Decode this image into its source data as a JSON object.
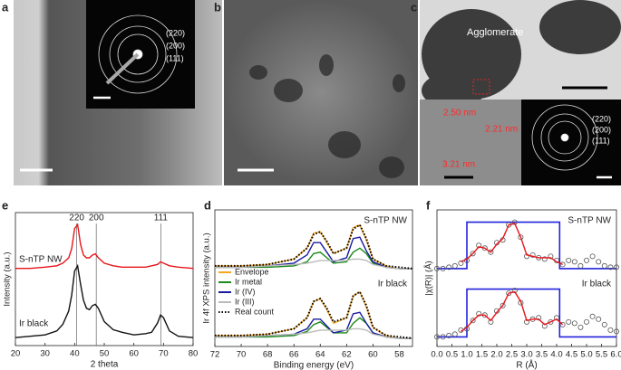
{
  "figure": {
    "panel_labels": [
      "a",
      "b",
      "c",
      "e",
      "d",
      "f"
    ],
    "panel_a": {
      "rings": [
        "(220)",
        "(200)",
        "(111)"
      ]
    },
    "panel_c": {
      "label": "Agglomerate",
      "spacings": [
        "2.50 nm",
        "2.21 nm",
        "3.21 nm"
      ],
      "rings": [
        "(220)",
        "(200)",
        "(111)"
      ]
    }
  },
  "chart_data": [
    {
      "type": "line",
      "xlabel": "2 theta",
      "ylabel": "Intensity (a.u.)",
      "x": [
        20,
        25,
        30,
        34,
        36,
        38,
        39,
        40,
        41,
        42,
        43,
        44,
        45,
        46,
        47,
        48,
        50,
        53,
        56,
        60,
        64,
        66,
        68,
        69,
        70,
        72,
        75,
        80
      ],
      "xlim": [
        20,
        80
      ],
      "xticks": [
        20,
        30,
        40,
        50,
        60,
        70,
        80
      ],
      "ylim": [
        0,
        10
      ],
      "series": [
        {
          "name": "S-nTP NW",
          "color": "#e8141a",
          "values": [
            5.8,
            5.8,
            5.9,
            6.0,
            6.2,
            6.6,
            7.3,
            8.8,
            9.1,
            7.6,
            6.8,
            6.6,
            6.6,
            6.8,
            6.9,
            6.6,
            6.2,
            6.0,
            5.9,
            5.9,
            5.9,
            6.0,
            6.1,
            6.3,
            6.2,
            6.0,
            5.9,
            5.8
          ]
        },
        {
          "name": "Ir black",
          "color": "#111111",
          "values": [
            0.6,
            0.7,
            0.8,
            1.1,
            1.6,
            2.6,
            3.8,
            5.6,
            6.0,
            4.6,
            3.4,
            2.8,
            2.7,
            3.0,
            3.1,
            2.8,
            1.8,
            1.2,
            1.0,
            0.8,
            0.9,
            1.0,
            1.7,
            2.3,
            2.1,
            1.1,
            0.7,
            0.6
          ]
        }
      ],
      "annotations": [
        {
          "label": "220",
          "x": 40.7
        },
        {
          "label": "200",
          "x": 47.3
        },
        {
          "label": "111",
          "x": 69.1
        }
      ]
    },
    {
      "type": "line",
      "xlabel": "Binding energy (eV)",
      "ylabel": "Ir 4f XPS intensity (a.u.)",
      "x": [
        72,
        70,
        68,
        66,
        65,
        64.5,
        64,
        63.5,
        63,
        62,
        61.5,
        61,
        60.5,
        60,
        59,
        58,
        57
      ],
      "xlim": [
        72,
        57
      ],
      "xticks": [
        72,
        70,
        68,
        66,
        64,
        62,
        60,
        58
      ],
      "ylim": [
        0,
        10
      ],
      "groups": [
        "S-nTP NW",
        "Ir black"
      ],
      "legend": "lower left",
      "series": [
        {
          "name": "Envelope",
          "color": "#f5a623",
          "values": [
            [
              5.9,
              5.9,
              6.0,
              6.4,
              7.2,
              8.3,
              8.4,
              7.6,
              6.8,
              7.2,
              8.7,
              8.9,
              7.8,
              6.4,
              5.9,
              5.7,
              5.7
            ],
            [
              0.8,
              0.8,
              0.9,
              1.3,
              2.1,
              3.3,
              3.5,
              2.7,
              1.7,
              2.1,
              3.7,
              4.0,
              2.9,
              1.4,
              0.8,
              0.6,
              0.6
            ]
          ]
        },
        {
          "name": "Ir metal",
          "color": "#1a8a1a",
          "values": [
            [
              5.8,
              5.8,
              5.8,
              5.9,
              6.2,
              6.8,
              6.9,
              6.5,
              6.1,
              6.2,
              6.9,
              7.2,
              6.8,
              6.1,
              5.8,
              5.7,
              5.7
            ],
            [
              0.7,
              0.7,
              0.7,
              0.8,
              1.1,
              1.6,
              1.8,
              1.4,
              1.0,
              1.0,
              1.7,
              2.1,
              1.7,
              1.0,
              0.7,
              0.6,
              0.6
            ]
          ]
        },
        {
          "name": "Ir (IV)",
          "color": "#1a1aa0",
          "values": [
            [
              5.8,
              5.8,
              5.9,
              6.1,
              6.7,
              7.6,
              7.6,
              6.9,
              6.2,
              6.5,
              7.9,
              8.0,
              7.0,
              6.2,
              5.8,
              5.7,
              5.7
            ],
            [
              0.7,
              0.7,
              0.8,
              0.9,
              1.3,
              2.0,
              2.0,
              1.5,
              1.0,
              1.2,
              2.4,
              2.5,
              1.7,
              1.0,
              0.7,
              0.6,
              0.6
            ]
          ]
        },
        {
          "name": "Ir (III)",
          "color": "#bbbbbb",
          "values": [
            [
              5.8,
              5.8,
              5.9,
              6.0,
              6.1,
              6.2,
              6.3,
              6.3,
              6.3,
              6.3,
              6.4,
              6.4,
              6.3,
              6.0,
              5.8,
              5.7,
              5.7
            ],
            [
              0.7,
              0.7,
              0.8,
              0.9,
              1.0,
              1.1,
              1.2,
              1.2,
              1.2,
              1.2,
              1.3,
              1.3,
              1.2,
              0.9,
              0.7,
              0.6,
              0.6
            ]
          ]
        },
        {
          "name": "Real count",
          "color": "#000000",
          "dash": "dotted",
          "values": [
            [
              5.9,
              5.9,
              6.0,
              6.4,
              7.2,
              8.2,
              8.4,
              7.7,
              6.8,
              7.2,
              8.6,
              8.9,
              7.9,
              6.4,
              5.9,
              5.8,
              5.7
            ],
            [
              0.8,
              0.8,
              0.9,
              1.3,
              2.1,
              3.3,
              3.5,
              2.8,
              1.8,
              2.1,
              3.7,
              4.0,
              3.0,
              1.4,
              0.8,
              0.7,
              0.6
            ]
          ]
        }
      ]
    },
    {
      "type": "line",
      "xlabel": "R (Å)",
      "ylabel": "|χ(R)| (Å)",
      "x": [
        0,
        0.2,
        0.4,
        0.6,
        0.8,
        1.0,
        1.2,
        1.4,
        1.6,
        1.8,
        2.0,
        2.2,
        2.4,
        2.6,
        2.8,
        3.0,
        3.2,
        3.4,
        3.6,
        3.8,
        4.0,
        4.2,
        4.4,
        4.6,
        4.8,
        5.0,
        5.2,
        5.4,
        5.6,
        5.8,
        6.0
      ],
      "xlim": [
        0,
        6
      ],
      "ylim": [
        0,
        10
      ],
      "xticks": [
        {
          "value": 0,
          "label": "0.0"
        },
        0.5,
        {
          "value": 1,
          "label": "1.0"
        },
        1.5,
        {
          "value": 2,
          "label": "2.0"
        },
        2.5,
        {
          "value": 3,
          "label": "3.0"
        },
        3.5,
        {
          "value": 4,
          "label": "4.0"
        },
        4.5,
        {
          "value": 5,
          "label": "5.0"
        },
        5.5,
        {
          "value": 6,
          "label": "6.0"
        }
      ],
      "groups": [
        "S-nTP NW",
        "Ir black"
      ],
      "window_x": [
        1.0,
        4.1
      ],
      "window_levels": [
        [
          5.7,
          9.1
        ],
        [
          0.7,
          4.2
        ]
      ],
      "window_color": "#2222dd",
      "series": [
        {
          "color": "#555555",
          "marker": "circle",
          "values": [
            [
              5.7,
              5.7,
              5.8,
              5.9,
              6.1,
              6.3,
              6.8,
              7.4,
              7.2,
              6.9,
              7.6,
              7.8,
              8.9,
              9.1,
              8.0,
              6.6,
              6.7,
              6.5,
              6.4,
              6.6,
              6.3,
              6.0,
              6.3,
              6.2,
              5.9,
              6.3,
              6.6,
              6.2,
              5.9,
              5.8,
              5.8
            ],
            [
              0.7,
              0.7,
              0.8,
              0.9,
              1.2,
              1.3,
              1.9,
              2.4,
              2.3,
              1.8,
              2.6,
              3.0,
              3.9,
              4.1,
              3.2,
              1.8,
              2.0,
              2.1,
              1.5,
              1.8,
              2.1,
              1.6,
              1.8,
              1.7,
              1.4,
              1.8,
              2.2,
              2.0,
              1.6,
              1.2,
              1.1
            ]
          ]
        },
        {
          "color": "#e8141a",
          "values": [
            [
              null,
              null,
              null,
              null,
              6.2,
              6.4,
              6.8,
              7.3,
              7.2,
              6.9,
              7.5,
              7.9,
              8.9,
              9.0,
              8.0,
              6.7,
              6.6,
              6.5,
              6.5,
              6.5,
              6.2,
              6.0,
              null,
              null,
              null,
              null,
              null,
              null,
              null,
              null,
              null
            ],
            [
              null,
              null,
              null,
              null,
              1.1,
              1.4,
              1.9,
              2.3,
              2.3,
              1.9,
              2.5,
              3.0,
              3.9,
              4.0,
              3.3,
              1.9,
              2.0,
              2.0,
              1.6,
              1.8,
              2.0,
              1.6,
              null,
              null,
              null,
              null,
              null,
              null,
              null,
              null,
              null
            ]
          ]
        }
      ]
    }
  ]
}
